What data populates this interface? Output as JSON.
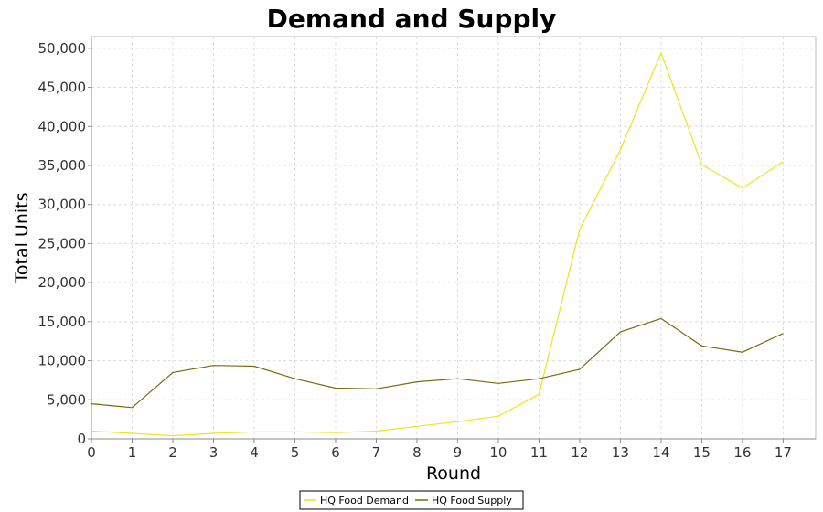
{
  "chart_data": {
    "type": "line",
    "title": "Demand and Supply",
    "xlabel": "Round",
    "ylabel": "Total Units",
    "x": [
      0,
      1,
      2,
      3,
      4,
      5,
      6,
      7,
      8,
      9,
      10,
      11,
      12,
      13,
      14,
      15,
      16,
      17
    ],
    "xlim": [
      0,
      17.8
    ],
    "ylim": [
      0,
      51500
    ],
    "yticks": [
      0,
      5000,
      10000,
      15000,
      20000,
      25000,
      30000,
      35000,
      40000,
      45000,
      50000
    ],
    "ytick_labels": [
      "0",
      "5,000",
      "10,000",
      "15,000",
      "20,000",
      "25,000",
      "30,000",
      "35,000",
      "40,000",
      "45,000",
      "50,000"
    ],
    "grid": true,
    "legend_position": "bottom-center",
    "series": [
      {
        "name": "HQ Food Demand",
        "color": "#f5e01e",
        "values": [
          1000,
          700,
          400,
          700,
          900,
          900,
          800,
          1000,
          1600,
          2200,
          2900,
          5700,
          26800,
          37000,
          49400,
          35100,
          32100,
          35500
        ]
      },
      {
        "name": "HQ Food Supply",
        "color": "#7a6a10",
        "values": [
          4500,
          4000,
          8500,
          9400,
          9300,
          7700,
          6500,
          6400,
          7300,
          7700,
          7100,
          7700,
          8900,
          13700,
          15400,
          11900,
          11100,
          13500
        ]
      }
    ]
  }
}
